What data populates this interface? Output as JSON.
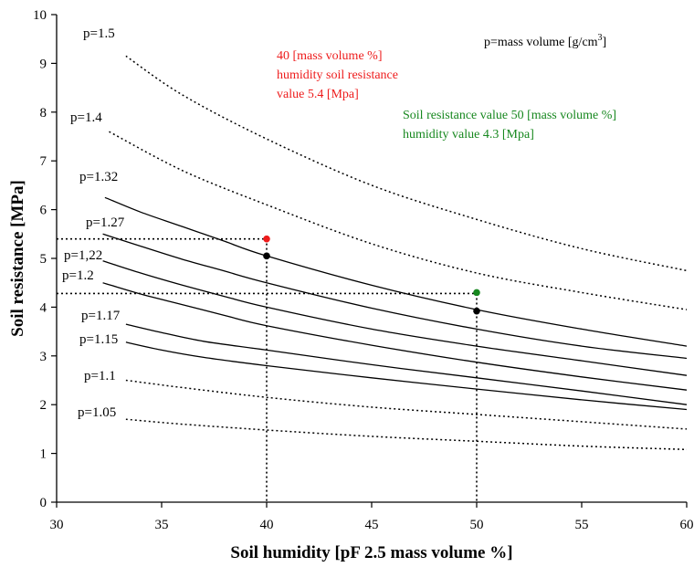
{
  "chart_data": {
    "type": "line",
    "xlabel": "Soil humidity [pF 2.5 mass volume %]",
    "ylabel": "Soil resistance [MPa]",
    "xlim": [
      30,
      60
    ],
    "ylim": [
      0,
      10
    ],
    "xticks": [
      "30",
      "35",
      "40",
      "45",
      "50",
      "55",
      "60"
    ],
    "yticks": [
      "0",
      "1",
      "2",
      "3",
      "4",
      "5",
      "6",
      "7",
      "8",
      "9",
      "10"
    ],
    "grid": false,
    "series": [
      {
        "name": "p=1.5",
        "style": "dotted",
        "x": [
          33.3,
          36,
          40,
          45,
          50,
          55,
          60
        ],
        "y": [
          9.15,
          8.35,
          7.45,
          6.5,
          5.8,
          5.2,
          4.75
        ]
      },
      {
        "name": "p=1.4",
        "style": "dotted",
        "x": [
          32.5,
          36,
          40,
          45,
          50,
          55,
          60
        ],
        "y": [
          7.6,
          6.8,
          6.1,
          5.3,
          4.7,
          4.3,
          3.95
        ]
      },
      {
        "name": "p=1.32",
        "style": "solid",
        "x": [
          32.3,
          34,
          36,
          38,
          40,
          45,
          50,
          55,
          60
        ],
        "y": [
          6.25,
          5.95,
          5.65,
          5.35,
          5.05,
          4.45,
          3.95,
          3.55,
          3.2
        ]
      },
      {
        "name": "p=1.27",
        "style": "solid",
        "x": [
          32.2,
          34,
          36,
          38,
          40,
          45,
          50,
          55,
          60
        ],
        "y": [
          5.5,
          5.25,
          4.98,
          4.74,
          4.5,
          3.98,
          3.55,
          3.2,
          2.95
        ]
      },
      {
        "name": "p=1,22",
        "style": "solid",
        "x": [
          32.2,
          34,
          36,
          38,
          40,
          45,
          50,
          55,
          60
        ],
        "y": [
          4.95,
          4.7,
          4.45,
          4.22,
          4.0,
          3.55,
          3.2,
          2.9,
          2.6
        ]
      },
      {
        "name": "p=1.2",
        "style": "solid",
        "x": [
          32.2,
          34,
          36,
          38,
          40,
          45,
          50,
          55,
          60
        ],
        "y": [
          4.5,
          4.27,
          4.05,
          3.83,
          3.62,
          3.22,
          2.87,
          2.57,
          2.3
        ]
      },
      {
        "name": "p=1.17",
        "style": "solid",
        "x": [
          33.3,
          35,
          37,
          40,
          45,
          50,
          55,
          60
        ],
        "y": [
          3.65,
          3.48,
          3.3,
          3.12,
          2.82,
          2.55,
          2.28,
          2.0
        ]
      },
      {
        "name": "p=1.15",
        "style": "solid",
        "x": [
          33.3,
          35,
          37,
          40,
          45,
          50,
          55,
          60
        ],
        "y": [
          3.28,
          3.12,
          2.97,
          2.8,
          2.55,
          2.32,
          2.1,
          1.9
        ]
      },
      {
        "name": "p=1.1",
        "style": "dotted",
        "x": [
          33.3,
          36,
          40,
          45,
          50,
          55,
          60
        ],
        "y": [
          2.5,
          2.35,
          2.15,
          1.95,
          1.8,
          1.65,
          1.5
        ]
      },
      {
        "name": "p=1.05",
        "style": "dotted",
        "x": [
          33.3,
          36,
          40,
          45,
          50,
          55,
          60
        ],
        "y": [
          1.7,
          1.6,
          1.48,
          1.35,
          1.25,
          1.15,
          1.08
        ]
      }
    ],
    "points": [
      {
        "x": 40,
        "y": 5.4,
        "color": "#ee1c1c"
      },
      {
        "x": 40,
        "y": 5.05,
        "color": "#000000"
      },
      {
        "x": 50,
        "y": 4.3,
        "color": "#17881f"
      },
      {
        "x": 50,
        "y": 3.92,
        "color": "#000000"
      }
    ],
    "reference_lines": [
      {
        "x": 40,
        "y": 5.4
      },
      {
        "x": 50,
        "y": 4.28
      }
    ],
    "annotations": [
      {
        "lines": [
          "40 [mass volume %]",
          "humidity soil resistance",
          "value 5.4 [Mpa]"
        ],
        "color": "#ee1c1c"
      },
      {
        "lines": [
          "Soil resistance value 50 [mass volume %]",
          "humidity value 4.3 [Mpa]"
        ],
        "color": "#17881f"
      }
    ],
    "legend_note": {
      "text": "p=mass volume [g/cm",
      "sup": "3",
      "close": "]"
    }
  }
}
